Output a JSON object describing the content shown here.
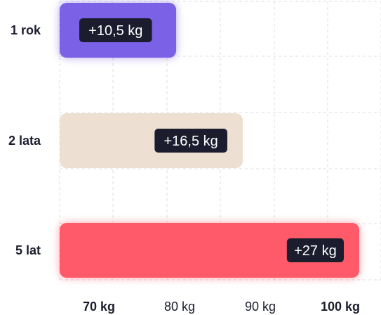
{
  "chart_data": {
    "type": "bar",
    "orientation": "horizontal",
    "categories": [
      "1 rok",
      "2 lata",
      "5 lat"
    ],
    "values": [
      10.5,
      16.5,
      27
    ],
    "value_labels": [
      "+10,5 kg",
      "+16,5 kg",
      "+27 kg"
    ],
    "bar_colors": [
      "#7b61e5",
      "#ede0d2",
      "#ff5a6a"
    ],
    "glow_colors": [
      "#7b61e5",
      null,
      "#ff5a6a"
    ],
    "x_ticks": [
      {
        "value": 70,
        "label": "70 kg",
        "bold": true
      },
      {
        "value": 80,
        "label": "80 kg",
        "bold": false
      },
      {
        "value": 90,
        "label": "90 kg",
        "bold": false
      },
      {
        "value": 100,
        "label": "100 kg",
        "bold": true
      }
    ],
    "xlim": [
      70,
      100
    ],
    "grid": true,
    "title": "",
    "xlabel": "",
    "ylabel": ""
  },
  "colors": {
    "label_background": "#1b1d2e",
    "label_text": "#ffffff",
    "grid": "#dcdcdc",
    "axis_text": "#1b1d2e"
  }
}
